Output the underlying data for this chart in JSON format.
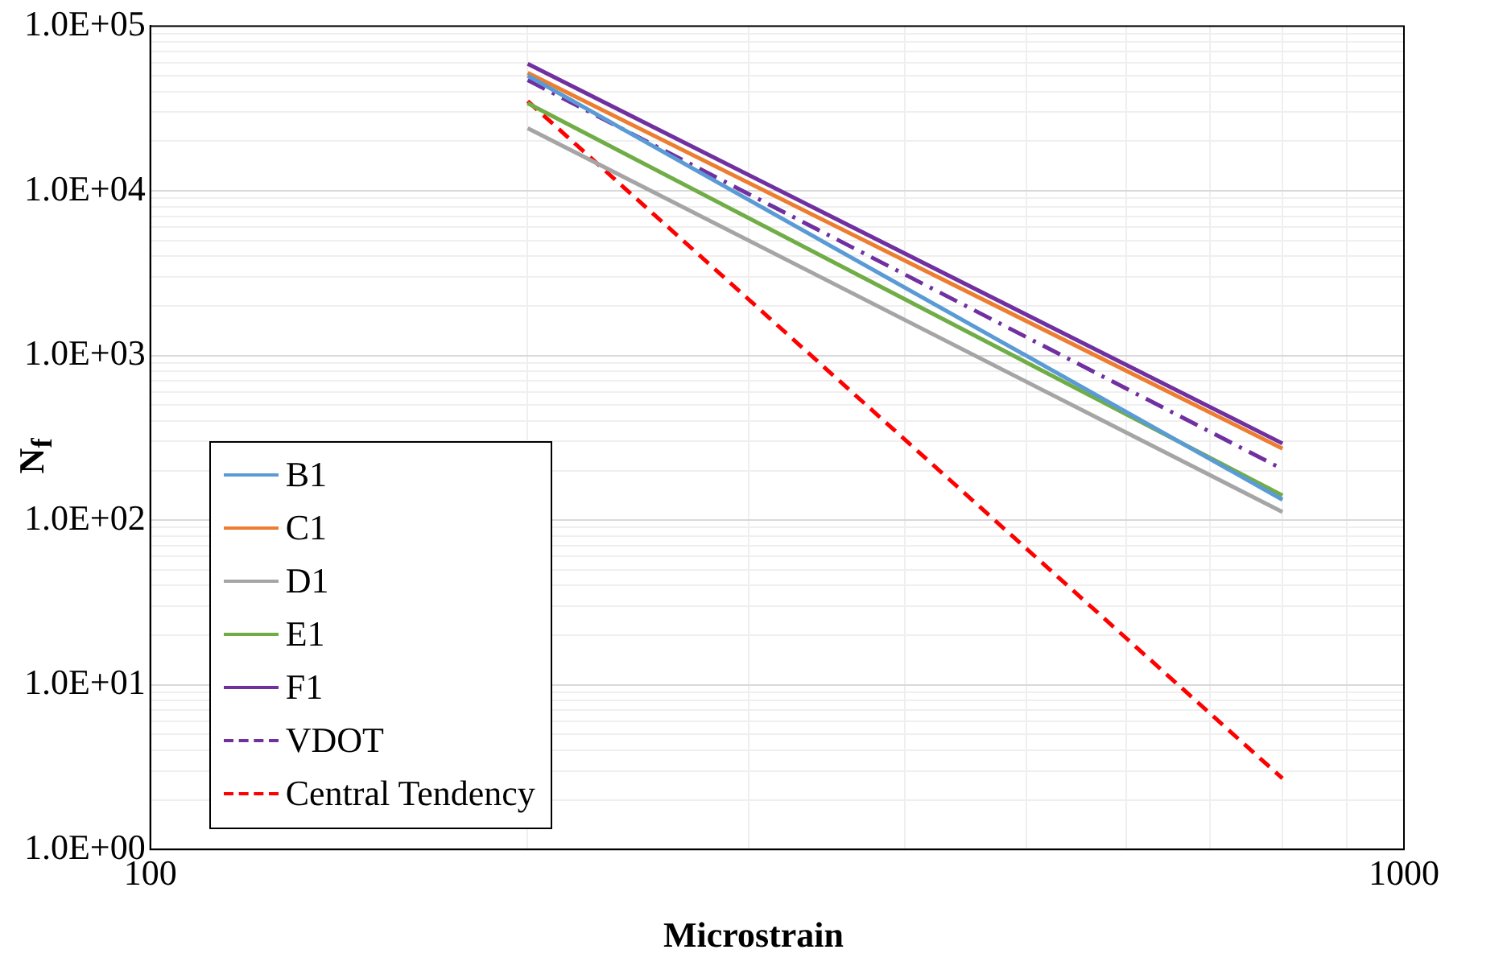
{
  "chart_data": {
    "type": "line",
    "xlabel": "Microstrain",
    "ylabel": "N$_{f}$",
    "log": "xy",
    "grid": true,
    "legend": "bottom left",
    "marker": "none",
    "line_style": "solid",
    "xlim": [
      100,
      1000
    ],
    "ylim": [
      1,
      100000
    ],
    "xticks": [
      100,
      {
        "value": 200,
        "label": null
      },
      {
        "value": 300,
        "label": null
      },
      {
        "value": 400,
        "label": null
      },
      {
        "value": 500,
        "label": null
      },
      {
        "value": 600,
        "label": null
      },
      {
        "value": 700,
        "label": null
      },
      {
        "value": 800,
        "label": null
      },
      {
        "value": 900,
        "label": null
      },
      1000
    ],
    "yticks": [
      {
        "value": 1,
        "label": "1.0E+00"
      },
      {
        "value": 2,
        "label": null
      },
      {
        "value": 3,
        "label": null
      },
      {
        "value": 4,
        "label": null
      },
      {
        "value": 5,
        "label": null
      },
      {
        "value": 6,
        "label": null
      },
      {
        "value": 7,
        "label": null
      },
      {
        "value": 8,
        "label": null
      },
      {
        "value": 9,
        "label": null
      },
      {
        "value": 10,
        "label": "1.0E+01"
      },
      {
        "value": 20,
        "label": null
      },
      {
        "value": 30,
        "label": null
      },
      {
        "value": 40,
        "label": null
      },
      {
        "value": 50,
        "label": null
      },
      {
        "value": 60,
        "label": null
      },
      {
        "value": 70,
        "label": null
      },
      {
        "value": 80,
        "label": null
      },
      {
        "value": 90,
        "label": null
      },
      {
        "value": 100,
        "label": "1.0E+02"
      },
      {
        "value": 200,
        "label": null
      },
      {
        "value": 300,
        "label": null
      },
      {
        "value": 400,
        "label": null
      },
      {
        "value": 500,
        "label": null
      },
      {
        "value": 600,
        "label": null
      },
      {
        "value": 700,
        "label": null
      },
      {
        "value": 800,
        "label": null
      },
      {
        "value": 900,
        "label": null
      },
      {
        "value": 1000,
        "label": "1.0E+03"
      },
      {
        "value": 2000,
        "label": null
      },
      {
        "value": 3000,
        "label": null
      },
      {
        "value": 4000,
        "label": null
      },
      {
        "value": 5000,
        "label": null
      },
      {
        "value": 6000,
        "label": null
      },
      {
        "value": 7000,
        "label": null
      },
      {
        "value": 8000,
        "label": null
      },
      {
        "value": 9000,
        "label": null
      },
      {
        "value": 10000,
        "label": "1.0E+04"
      },
      {
        "value": 20000,
        "label": null
      },
      {
        "value": 30000,
        "label": null
      },
      {
        "value": 40000,
        "label": null
      },
      {
        "value": 50000,
        "label": null
      },
      {
        "value": 60000,
        "label": null
      },
      {
        "value": 70000,
        "label": null
      },
      {
        "value": 80000,
        "label": null
      },
      {
        "value": 90000,
        "label": null
      },
      {
        "value": 100000,
        "label": "1.0E+05"
      }
    ],
    "x": [
      200,
      800
    ],
    "series": [
      {
        "name": "B1",
        "color": "#5b9bd5",
        "values": [
          50000,
          133
        ]
      },
      {
        "name": "C1",
        "color": "#ed7d31",
        "values": [
          52000,
          272
        ]
      },
      {
        "name": "D1",
        "color": "#a5a5a5",
        "values": [
          24000,
          112
        ]
      },
      {
        "name": "E1",
        "color": "#70ad47",
        "values": [
          34000,
          141
        ]
      },
      {
        "name": "F1",
        "color": "#7030a0",
        "values": [
          59000,
          292
        ]
      },
      {
        "name": "VDOT",
        "color": "#7030a0",
        "line_style": "dashdot",
        "values": [
          47000,
          204
        ]
      },
      {
        "name": "Central Tendency",
        "color": "#ff0000",
        "line_style": "dashed",
        "values": [
          35000,
          2.7
        ]
      }
    ]
  }
}
